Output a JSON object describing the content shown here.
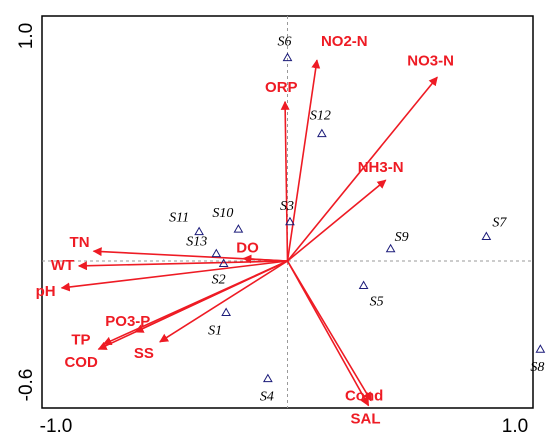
{
  "chart_data": {
    "type": "scatter",
    "subtype": "rda-biplot",
    "title": "",
    "xlabel": "",
    "ylabel": "",
    "xlim": [
      -1.0,
      1.0
    ],
    "ylim": [
      -0.6,
      1.0
    ],
    "x_ticks": [
      "-1.0",
      "1.0"
    ],
    "y_ticks": [
      "-0.6",
      "1.0"
    ],
    "crosshair": "dashed lines at x=0 and y=0",
    "colors": {
      "arrows": "#ee1b24",
      "sites": "#1c1c7a",
      "axes": "#000000",
      "crosshair": "#9a9a9a"
    },
    "arrows": [
      {
        "label": "NO2-N",
        "x": 0.12,
        "y": 0.82
      },
      {
        "label": "ORP",
        "x": -0.01,
        "y": 0.65
      },
      {
        "label": "NO3-N",
        "x": 0.61,
        "y": 0.75
      },
      {
        "label": "NH3-N",
        "x": 0.4,
        "y": 0.33
      },
      {
        "label": "TN",
        "x": -0.79,
        "y": 0.04
      },
      {
        "label": "WT",
        "x": -0.85,
        "y": -0.02
      },
      {
        "label": "DO",
        "x": -0.18,
        "y": 0.01
      },
      {
        "label": "pH",
        "x": -0.92,
        "y": -0.11
      },
      {
        "label": "PO3-P",
        "x": -0.62,
        "y": -0.29
      },
      {
        "label": "TP",
        "x": -0.75,
        "y": -0.34
      },
      {
        "label": "COD",
        "x": -0.77,
        "y": -0.36
      },
      {
        "label": "SS",
        "x": -0.52,
        "y": -0.33
      },
      {
        "label": "Cond",
        "x": 0.34,
        "y": -0.57
      },
      {
        "label": "SAL",
        "x": 0.33,
        "y": -0.59
      }
    ],
    "sites": [
      {
        "label": "S1",
        "x": -0.25,
        "y": -0.21
      },
      {
        "label": "S2",
        "x": -0.26,
        "y": -0.01
      },
      {
        "label": "S3",
        "x": 0.01,
        "y": 0.16
      },
      {
        "label": "S4",
        "x": -0.08,
        "y": -0.48
      },
      {
        "label": "S5",
        "x": 0.31,
        "y": -0.1
      },
      {
        "label": "S6",
        "x": 0.0,
        "y": 0.83
      },
      {
        "label": "S7",
        "x": 0.81,
        "y": 0.1
      },
      {
        "label": "S8",
        "x": 1.03,
        "y": -0.36
      },
      {
        "label": "S9",
        "x": 0.42,
        "y": 0.05
      },
      {
        "label": "S10",
        "x": -0.2,
        "y": 0.13
      },
      {
        "label": "S11",
        "x": -0.36,
        "y": 0.12
      },
      {
        "label": "S12",
        "x": 0.14,
        "y": 0.52
      },
      {
        "label": "S13",
        "x": -0.29,
        "y": 0.03
      }
    ]
  }
}
